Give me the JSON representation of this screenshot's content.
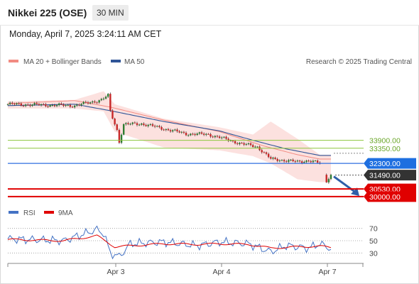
{
  "header": {
    "title": "Nikkei 225 (OSE)",
    "timeframe": "30 MIN",
    "datetime": "Monday, April 7, 2025 3:24:11 AM CET"
  },
  "legend": {
    "ma20_label": "MA 20 + Bollinger Bands",
    "ma50_label": "MA 50",
    "credit": "Research © 2025 Trading Central",
    "ma20_color": "#f28b82",
    "ma50_color": "#2f5597"
  },
  "rsi_legend": {
    "rsi_label": "RSI",
    "ma_label": "9MA",
    "rsi_color": "#4472c4",
    "ma_color": "#e00000"
  },
  "chart_data": {
    "type": "candlestick",
    "x_ticks": [
      "Apr 3",
      "Apr 4",
      "Apr 7"
    ],
    "price_ylim": [
      29600,
      38700
    ],
    "levels": [
      {
        "value": 33900,
        "label": "33900.00",
        "kind": "resistance",
        "color": "#8dc63f"
      },
      {
        "value": 33350,
        "label": "33350.00",
        "kind": "resistance",
        "color": "#8dc63f"
      },
      {
        "value": 32300,
        "label": "32300.00",
        "kind": "pivot",
        "color": "#2f6fe0"
      },
      {
        "value": 31490,
        "label": "31490.00",
        "kind": "last",
        "color": "#222222"
      },
      {
        "value": 30530,
        "label": "30530.00",
        "kind": "support",
        "color": "#e00000"
      },
      {
        "value": 30000,
        "label": "30000.00",
        "kind": "support",
        "color": "#e00000"
      }
    ],
    "ma50_anchors": [
      [
        0,
        36300
      ],
      [
        30,
        36400
      ],
      [
        46,
        35950
      ],
      [
        70,
        35200
      ],
      [
        95,
        34550
      ],
      [
        110,
        33900
      ],
      [
        125,
        33300
      ],
      [
        140,
        32850
      ]
    ],
    "ma20_anchors": [
      [
        0,
        36450
      ],
      [
        30,
        36650
      ],
      [
        46,
        36200
      ],
      [
        70,
        35300
      ],
      [
        95,
        34500
      ],
      [
        115,
        33500
      ],
      [
        130,
        32900
      ],
      [
        140,
        32600
      ]
    ],
    "bollinger_upper": [
      [
        0,
        36600
      ],
      [
        30,
        36700
      ],
      [
        43,
        37300
      ],
      [
        48,
        36400
      ],
      [
        70,
        35400
      ],
      [
        95,
        34800
      ],
      [
        110,
        34300
      ],
      [
        118,
        35200
      ],
      [
        130,
        34000
      ],
      [
        140,
        32900
      ]
    ],
    "bollinger_lower": [
      [
        0,
        36100
      ],
      [
        30,
        36100
      ],
      [
        43,
        35900
      ],
      [
        48,
        34500
      ],
      [
        70,
        33400
      ],
      [
        95,
        33200
      ],
      [
        110,
        32800
      ],
      [
        118,
        32300
      ],
      [
        130,
        31200
      ],
      [
        140,
        31000
      ]
    ],
    "price_path": [
      [
        0,
        36400
      ],
      [
        30,
        36300
      ],
      [
        42,
        36700
      ],
      [
        45,
        37000
      ],
      [
        46,
        35900
      ],
      [
        49,
        34600
      ],
      [
        50,
        33800
      ],
      [
        52,
        35000
      ],
      [
        60,
        35050
      ],
      [
        70,
        34700
      ],
      [
        80,
        34350
      ],
      [
        90,
        34300
      ],
      [
        95,
        34100
      ],
      [
        105,
        33650
      ],
      [
        112,
        33450
      ],
      [
        118,
        32600
      ],
      [
        125,
        32500
      ],
      [
        130,
        32400
      ],
      [
        135,
        32500
      ],
      [
        140,
        32300
      ],
      [
        143,
        31100
      ],
      [
        145,
        31490
      ]
    ],
    "forecast_arrow": {
      "from": 31490,
      "to": 30530
    },
    "rsi": {
      "ylim": [
        20,
        80
      ],
      "levels": [
        70,
        50,
        30
      ],
      "rsi_anchors": [
        [
          0,
          53
        ],
        [
          25,
          50
        ],
        [
          40,
          68
        ],
        [
          43,
          62
        ],
        [
          46,
          30
        ],
        [
          50,
          24
        ],
        [
          55,
          45
        ],
        [
          70,
          48
        ],
        [
          85,
          42
        ],
        [
          95,
          48
        ],
        [
          108,
          45
        ],
        [
          118,
          32
        ],
        [
          125,
          42
        ],
        [
          135,
          38
        ],
        [
          140,
          45
        ],
        [
          145,
          37
        ]
      ],
      "ma_anchors": [
        [
          0,
          52
        ],
        [
          25,
          50
        ],
        [
          40,
          58
        ],
        [
          48,
          40
        ],
        [
          56,
          42
        ],
        [
          70,
          45
        ],
        [
          85,
          44
        ],
        [
          95,
          45
        ],
        [
          108,
          44
        ],
        [
          118,
          38
        ],
        [
          130,
          40
        ],
        [
          140,
          41
        ],
        [
          145,
          39
        ]
      ]
    }
  }
}
